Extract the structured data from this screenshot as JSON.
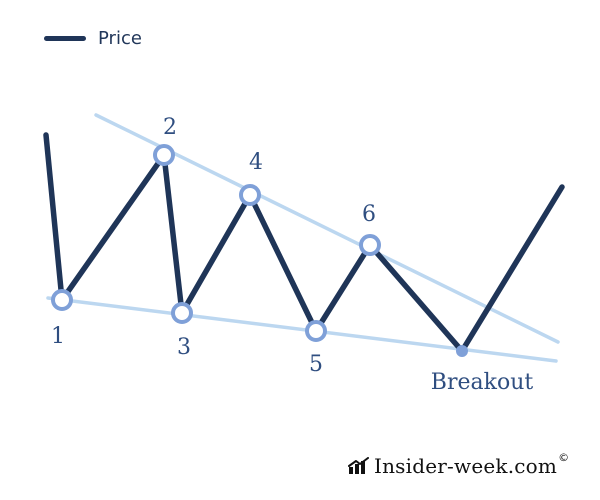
{
  "legend": {
    "label": "Price",
    "color": "#1f3558"
  },
  "colors": {
    "price_line": "#1f3558",
    "trend_line": "#bcd7f0",
    "marker_stroke": "#7fa0d8",
    "marker_fill": "#ffffff",
    "breakout_dot": "#7fa0d8",
    "label_text": "#2f4e80"
  },
  "points": [
    {
      "label": "1"
    },
    {
      "label": "2"
    },
    {
      "label": "3"
    },
    {
      "label": "4"
    },
    {
      "label": "5"
    },
    {
      "label": "6"
    }
  ],
  "breakout": {
    "label": "Breakout"
  },
  "watermark": {
    "icon": "chart-trend-icon",
    "text": "Insider-week.com",
    "symbol": "©"
  }
}
